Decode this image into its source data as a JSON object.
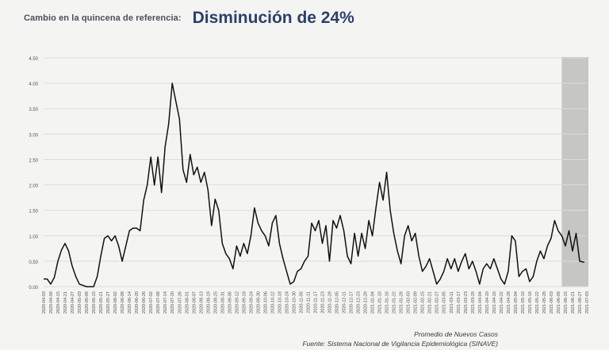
{
  "header": {
    "label": "Cambio en la quincena de referencia:",
    "value": "Disminución de 24%"
  },
  "footer": {
    "series_name": "Promedio de Nuevos Casos",
    "source": "Fuente: Sistema Nacional de Vigilancia Epidemiológica (SINAVE)"
  },
  "colors": {
    "line": "#111111",
    "grid": "#dcdcdc",
    "highlight": "#bdbdbd",
    "title": "#2d3f6b"
  },
  "chart_data": {
    "type": "line",
    "xlabel": "",
    "ylabel": "",
    "ylim": [
      0,
      4.5
    ],
    "yticks": [
      "0.00",
      "0.50",
      "1.00",
      "1.50",
      "2.00",
      "2.50",
      "3.00",
      "3.50",
      "4.00",
      "4.50"
    ],
    "grid": true,
    "highlight_region": {
      "from": "2021-06-12",
      "to": "2021-07-03",
      "color": "#bdbdbd"
    },
    "xticks": [
      "2020-04-03",
      "2020-04-09",
      "2020-04-15",
      "2020-04-21",
      "2020-04-27",
      "2020-05-03",
      "2020-05-09",
      "2020-05-15",
      "2020-05-21",
      "2020-05-27",
      "2020-06-02",
      "2020-06-08",
      "2020-06-14",
      "2020-06-20",
      "2020-06-26",
      "2020-07-02",
      "2020-07-08",
      "2020-07-14",
      "2020-07-20",
      "2020-07-26",
      "2020-08-01",
      "2020-08-07",
      "2020-08-13",
      "2020-08-19",
      "2020-08-25",
      "2020-08-31",
      "2020-09-06",
      "2020-09-12",
      "2020-09-18",
      "2020-09-24",
      "2020-09-30",
      "2020-10-06",
      "2020-10-12",
      "2020-10-18",
      "2020-10-24",
      "2020-10-30",
      "2020-11-05",
      "2020-11-11",
      "2020-11-17",
      "2020-11-23",
      "2020-11-29",
      "2020-12-05",
      "2020-12-11",
      "2020-12-17",
      "2020-12-23",
      "2020-12-29",
      "2021-01-04",
      "2021-01-10",
      "2021-01-16",
      "2021-01-22",
      "2021-01-28",
      "2021-02-03",
      "2021-02-09",
      "2021-02-15",
      "2021-02-21",
      "2021-02-27",
      "2021-03-05",
      "2021-03-11",
      "2021-03-17",
      "2021-03-23",
      "2021-03-29",
      "2021-04-04",
      "2021-04-10",
      "2021-04-16",
      "2021-04-22",
      "2021-04-28",
      "2021-05-04",
      "2021-05-10",
      "2021-05-16",
      "2021-05-22",
      "2021-05-28",
      "2021-06-03",
      "2021-06-09",
      "2021-06-15",
      "2021-06-21",
      "2021-06-27",
      "2021-07-03"
    ],
    "series": [
      {
        "name": "Promedio de Nuevos Casos",
        "points": [
          [
            "2020-04-03",
            0.15
          ],
          [
            "2020-04-06",
            0.15
          ],
          [
            "2020-04-09",
            0.05
          ],
          [
            "2020-04-12",
            0.18
          ],
          [
            "2020-04-15",
            0.5
          ],
          [
            "2020-04-18",
            0.72
          ],
          [
            "2020-04-21",
            0.85
          ],
          [
            "2020-04-24",
            0.7
          ],
          [
            "2020-04-27",
            0.4
          ],
          [
            "2020-04-30",
            0.2
          ],
          [
            "2020-05-03",
            0.05
          ],
          [
            "2020-05-09",
            0.0
          ],
          [
            "2020-05-15",
            0.0
          ],
          [
            "2020-05-18",
            0.2
          ],
          [
            "2020-05-21",
            0.6
          ],
          [
            "2020-05-24",
            0.95
          ],
          [
            "2020-05-27",
            1.0
          ],
          [
            "2020-05-30",
            0.9
          ],
          [
            "2020-06-02",
            1.0
          ],
          [
            "2020-06-05",
            0.8
          ],
          [
            "2020-06-08",
            0.5
          ],
          [
            "2020-06-11",
            0.8
          ],
          [
            "2020-06-14",
            1.1
          ],
          [
            "2020-06-17",
            1.15
          ],
          [
            "2020-06-20",
            1.15
          ],
          [
            "2020-06-23",
            1.1
          ],
          [
            "2020-06-26",
            1.7
          ],
          [
            "2020-06-29",
            2.0
          ],
          [
            "2020-07-02",
            2.55
          ],
          [
            "2020-07-05",
            2.0
          ],
          [
            "2020-07-08",
            2.55
          ],
          [
            "2020-07-11",
            1.85
          ],
          [
            "2020-07-14",
            2.75
          ],
          [
            "2020-07-17",
            3.2
          ],
          [
            "2020-07-20",
            4.0
          ],
          [
            "2020-07-23",
            3.65
          ],
          [
            "2020-07-26",
            3.3
          ],
          [
            "2020-07-29",
            2.3
          ],
          [
            "2020-08-01",
            2.05
          ],
          [
            "2020-08-04",
            2.6
          ],
          [
            "2020-08-07",
            2.2
          ],
          [
            "2020-08-10",
            2.35
          ],
          [
            "2020-08-13",
            2.05
          ],
          [
            "2020-08-16",
            2.25
          ],
          [
            "2020-08-19",
            1.9
          ],
          [
            "2020-08-22",
            1.2
          ],
          [
            "2020-08-25",
            1.72
          ],
          [
            "2020-08-28",
            1.5
          ],
          [
            "2020-08-31",
            0.85
          ],
          [
            "2020-09-03",
            0.65
          ],
          [
            "2020-09-06",
            0.55
          ],
          [
            "2020-09-09",
            0.35
          ],
          [
            "2020-09-12",
            0.8
          ],
          [
            "2020-09-15",
            0.6
          ],
          [
            "2020-09-18",
            0.85
          ],
          [
            "2020-09-21",
            0.65
          ],
          [
            "2020-09-24",
            1.0
          ],
          [
            "2020-09-27",
            1.55
          ],
          [
            "2020-09-30",
            1.25
          ],
          [
            "2020-10-03",
            1.1
          ],
          [
            "2020-10-06",
            1.0
          ],
          [
            "2020-10-09",
            0.8
          ],
          [
            "2020-10-12",
            1.25
          ],
          [
            "2020-10-15",
            1.4
          ],
          [
            "2020-10-18",
            0.85
          ],
          [
            "2020-10-21",
            0.55
          ],
          [
            "2020-10-24",
            0.3
          ],
          [
            "2020-10-27",
            0.05
          ],
          [
            "2020-10-30",
            0.1
          ],
          [
            "2020-11-02",
            0.3
          ],
          [
            "2020-11-05",
            0.35
          ],
          [
            "2020-11-08",
            0.5
          ],
          [
            "2020-11-11",
            0.6
          ],
          [
            "2020-11-14",
            1.25
          ],
          [
            "2020-11-17",
            1.1
          ],
          [
            "2020-11-20",
            1.3
          ],
          [
            "2020-11-23",
            0.85
          ],
          [
            "2020-11-26",
            1.2
          ],
          [
            "2020-11-29",
            0.5
          ],
          [
            "2020-12-02",
            1.3
          ],
          [
            "2020-12-05",
            1.15
          ],
          [
            "2020-12-08",
            1.4
          ],
          [
            "2020-12-11",
            1.1
          ],
          [
            "2020-12-14",
            0.6
          ],
          [
            "2020-12-17",
            0.45
          ],
          [
            "2020-12-20",
            1.05
          ],
          [
            "2020-12-23",
            0.6
          ],
          [
            "2020-12-26",
            1.05
          ],
          [
            "2020-12-29",
            0.75
          ],
          [
            "2021-01-01",
            1.3
          ],
          [
            "2021-01-04",
            1.0
          ],
          [
            "2021-01-07",
            1.55
          ],
          [
            "2021-01-10",
            2.05
          ],
          [
            "2021-01-13",
            1.7
          ],
          [
            "2021-01-16",
            2.25
          ],
          [
            "2021-01-19",
            1.5
          ],
          [
            "2021-01-22",
            1.05
          ],
          [
            "2021-01-25",
            0.7
          ],
          [
            "2021-01-28",
            0.45
          ],
          [
            "2021-01-31",
            1.0
          ],
          [
            "2021-02-03",
            1.2
          ],
          [
            "2021-02-06",
            0.9
          ],
          [
            "2021-02-09",
            1.05
          ],
          [
            "2021-02-12",
            0.6
          ],
          [
            "2021-02-15",
            0.3
          ],
          [
            "2021-02-18",
            0.4
          ],
          [
            "2021-02-21",
            0.55
          ],
          [
            "2021-02-24",
            0.3
          ],
          [
            "2021-02-27",
            0.05
          ],
          [
            "2021-03-02",
            0.15
          ],
          [
            "2021-03-05",
            0.3
          ],
          [
            "2021-03-08",
            0.55
          ],
          [
            "2021-03-11",
            0.35
          ],
          [
            "2021-03-14",
            0.55
          ],
          [
            "2021-03-17",
            0.3
          ],
          [
            "2021-03-20",
            0.5
          ],
          [
            "2021-03-23",
            0.65
          ],
          [
            "2021-03-26",
            0.35
          ],
          [
            "2021-03-29",
            0.5
          ],
          [
            "2021-04-01",
            0.3
          ],
          [
            "2021-04-04",
            0.05
          ],
          [
            "2021-04-07",
            0.35
          ],
          [
            "2021-04-10",
            0.45
          ],
          [
            "2021-04-13",
            0.35
          ],
          [
            "2021-04-16",
            0.55
          ],
          [
            "2021-04-19",
            0.35
          ],
          [
            "2021-04-22",
            0.15
          ],
          [
            "2021-04-25",
            0.05
          ],
          [
            "2021-04-28",
            0.3
          ],
          [
            "2021-05-01",
            1.0
          ],
          [
            "2021-05-04",
            0.9
          ],
          [
            "2021-05-07",
            0.2
          ],
          [
            "2021-05-10",
            0.3
          ],
          [
            "2021-05-13",
            0.35
          ],
          [
            "2021-05-16",
            0.1
          ],
          [
            "2021-05-19",
            0.2
          ],
          [
            "2021-05-22",
            0.5
          ],
          [
            "2021-05-25",
            0.7
          ],
          [
            "2021-05-28",
            0.55
          ],
          [
            "2021-05-31",
            0.8
          ],
          [
            "2021-06-03",
            0.95
          ],
          [
            "2021-06-06",
            1.3
          ],
          [
            "2021-06-09",
            1.1
          ],
          [
            "2021-06-12",
            1.0
          ],
          [
            "2021-06-15",
            0.8
          ],
          [
            "2021-06-18",
            1.1
          ],
          [
            "2021-06-21",
            0.7
          ],
          [
            "2021-06-24",
            1.05
          ],
          [
            "2021-06-27",
            0.5
          ],
          [
            "2021-07-01",
            0.48
          ]
        ]
      }
    ]
  }
}
